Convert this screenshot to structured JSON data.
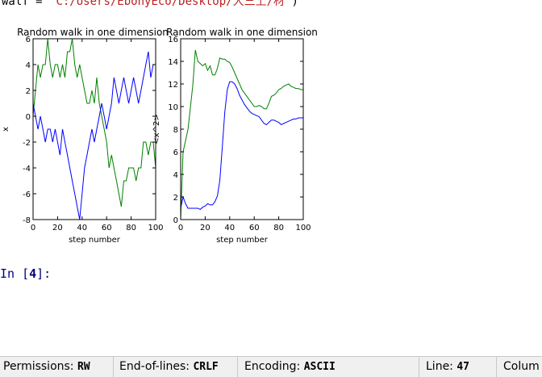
{
  "cell_output": {
    "code_prefix": "walf = ",
    "code_string": "'C:/Users/EbonyEco/Desktop/大三上/材'",
    "code_suffix": ")"
  },
  "chart_data": [
    {
      "type": "line",
      "title": "Random walk in one dimension",
      "xlabel": "step number",
      "ylabel": "x",
      "xlim": [
        0,
        100
      ],
      "ylim": [
        -8,
        6
      ],
      "xticks": [
        0,
        20,
        40,
        60,
        80,
        100
      ],
      "yticks": [
        -8,
        -6,
        -4,
        -2,
        0,
        2,
        4,
        6
      ],
      "grid": false,
      "series": [
        {
          "color": "#008000",
          "x": [
            0,
            2,
            4,
            6,
            8,
            10,
            12,
            14,
            16,
            18,
            20,
            22,
            24,
            26,
            28,
            30,
            32,
            34,
            36,
            38,
            40,
            42,
            44,
            46,
            48,
            50,
            52,
            54,
            56,
            58,
            60,
            62,
            64,
            66,
            68,
            70,
            72,
            74,
            76,
            78,
            80,
            82,
            84,
            86,
            88,
            90,
            92,
            94,
            96,
            98,
            100
          ],
          "y": [
            0,
            2,
            4,
            3,
            4,
            4,
            6,
            4,
            3,
            4,
            4,
            3,
            4,
            3,
            5,
            5,
            6,
            4,
            3,
            4,
            3,
            2,
            1,
            1,
            2,
            1,
            3,
            1,
            0,
            -1,
            -2,
            -4,
            -3,
            -4,
            -5,
            -6,
            -7,
            -5,
            -5,
            -4,
            -4,
            -4,
            -5,
            -4,
            -4,
            -2,
            -2,
            -3,
            -2,
            -2,
            -4
          ]
        },
        {
          "color": "#0000ff",
          "x": [
            0,
            2,
            4,
            6,
            8,
            10,
            12,
            14,
            16,
            18,
            20,
            22,
            24,
            26,
            28,
            30,
            32,
            34,
            36,
            38,
            40,
            42,
            44,
            46,
            48,
            50,
            52,
            54,
            56,
            58,
            60,
            62,
            64,
            66,
            68,
            70,
            72,
            74,
            76,
            78,
            80,
            82,
            84,
            86,
            88,
            90,
            92,
            94,
            96,
            98,
            100
          ],
          "y": [
            1,
            0,
            -1,
            0,
            -1,
            -2,
            -1,
            -1,
            -2,
            -1,
            -2,
            -3,
            -1,
            -2,
            -3,
            -4,
            -5,
            -6,
            -7,
            -8,
            -6,
            -4,
            -3,
            -2,
            -1,
            -2,
            -1,
            0,
            1,
            0,
            -1,
            0,
            1,
            3,
            2,
            1,
            2,
            3,
            2,
            1,
            2,
            3,
            2,
            1,
            2,
            3,
            4,
            5,
            3,
            4,
            4
          ]
        }
      ]
    },
    {
      "type": "line",
      "title": "Random walk in one dimension",
      "xlabel": "step number",
      "ylabel": "<x^2>",
      "xlim": [
        0,
        100
      ],
      "ylim": [
        0,
        16
      ],
      "xticks": [
        0,
        20,
        40,
        60,
        80,
        100
      ],
      "yticks": [
        0,
        2,
        4,
        6,
        8,
        10,
        12,
        14,
        16
      ],
      "grid": false,
      "series": [
        {
          "color": "#008000",
          "x": [
            0,
            2,
            4,
            6,
            8,
            10,
            12,
            14,
            16,
            18,
            20,
            22,
            24,
            26,
            28,
            30,
            32,
            34,
            36,
            38,
            40,
            42,
            44,
            46,
            48,
            50,
            52,
            54,
            56,
            58,
            60,
            62,
            64,
            66,
            68,
            70,
            72,
            74,
            76,
            78,
            80,
            82,
            84,
            86,
            88,
            90,
            92,
            94,
            96,
            98,
            100
          ],
          "y": [
            0,
            6,
            7,
            8,
            10,
            12,
            15,
            14,
            13.8,
            13.6,
            13.8,
            13.2,
            13.6,
            12.8,
            12.8,
            13.4,
            14.3,
            14.2,
            14.2,
            14,
            13.9,
            13.5,
            13,
            12.5,
            12,
            11.5,
            11.2,
            10.9,
            10.6,
            10.3,
            10,
            10,
            10.1,
            10,
            9.8,
            9.8,
            10.3,
            10.9,
            11,
            11.2,
            11.5,
            11.6,
            11.8,
            11.9,
            12,
            11.8,
            11.7,
            11.6,
            11.6,
            11.5,
            11.5
          ]
        },
        {
          "color": "#0000ff",
          "x": [
            0,
            2,
            4,
            6,
            8,
            10,
            12,
            14,
            16,
            18,
            20,
            22,
            24,
            26,
            28,
            30,
            32,
            34,
            36,
            38,
            40,
            42,
            44,
            46,
            48,
            50,
            52,
            54,
            56,
            58,
            60,
            62,
            64,
            66,
            68,
            70,
            72,
            74,
            76,
            78,
            80,
            82,
            84,
            86,
            88,
            90,
            92,
            94,
            96,
            98,
            100
          ],
          "y": [
            1,
            2,
            1.4,
            1,
            1,
            1,
            1,
            1,
            0.9,
            1.1,
            1.2,
            1.4,
            1.3,
            1.3,
            1.6,
            2.1,
            3.5,
            6.5,
            9.5,
            11.5,
            12.2,
            12.2,
            12,
            11.6,
            11,
            10.6,
            10.2,
            9.9,
            9.6,
            9.4,
            9.3,
            9.2,
            9.1,
            8.8,
            8.5,
            8.4,
            8.6,
            8.8,
            8.8,
            8.7,
            8.6,
            8.4,
            8.5,
            8.6,
            8.7,
            8.8,
            8.9,
            8.9,
            9,
            9,
            9
          ]
        }
      ]
    }
  ],
  "input_prompt": {
    "label": "In [",
    "number": "4",
    "suffix": "]:"
  },
  "status_bar": {
    "permissions_label": "Permissions:",
    "permissions_value": "RW",
    "eol_label": "End-of-lines:",
    "eol_value": "CRLF",
    "encoding_label": "Encoding:",
    "encoding_value": "ASCII",
    "line_label": "Line:",
    "line_value": "47",
    "column_label": "Colum"
  }
}
